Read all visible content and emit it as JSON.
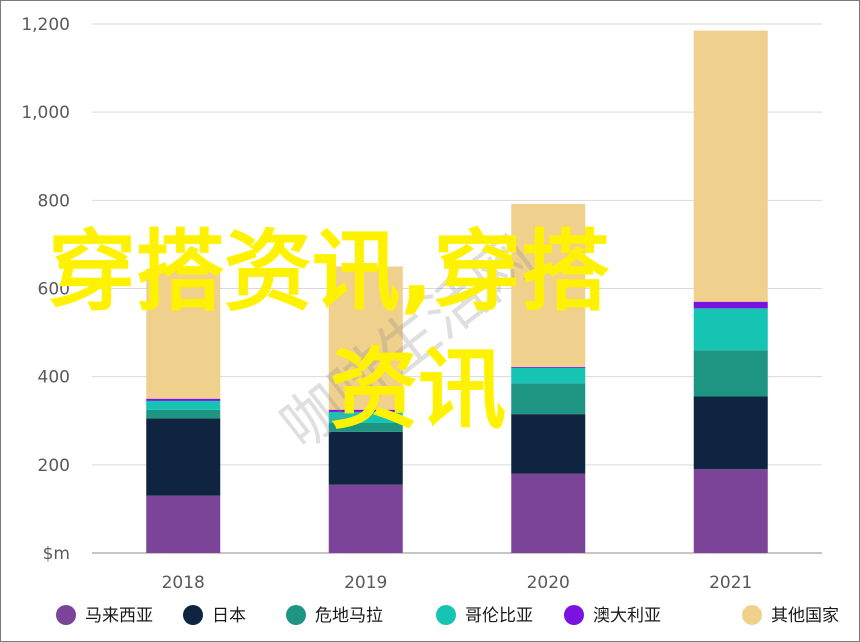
{
  "chart_data": {
    "type": "bar",
    "stacked": true,
    "categories": [
      "2018",
      "2019",
      "2020",
      "2021"
    ],
    "series": [
      {
        "name": "马来西亚",
        "color": "#7b4499",
        "values": [
          130,
          155,
          180,
          190
        ]
      },
      {
        "name": "日本",
        "color": "#0f2440",
        "values": [
          175,
          120,
          135,
          165
        ]
      },
      {
        "name": "危地马拉",
        "color": "#1e9582",
        "values": [
          20,
          20,
          70,
          105
        ]
      },
      {
        "name": "哥伦比亚",
        "color": "#15c4b2",
        "values": [
          20,
          25,
          35,
          95
        ]
      },
      {
        "name": "澳大利亚",
        "color": "#7b13e0",
        "values": [
          5,
          5,
          2,
          15
        ]
      },
      {
        "name": "其他国家",
        "color": "#efd08d",
        "values": [
          295,
          325,
          370,
          615
        ]
      }
    ],
    "ylim": [
      0,
      1200
    ],
    "yticks": [
      "$m",
      "200",
      "400",
      "600",
      "800",
      "1,000",
      "1,200"
    ],
    "grid": true,
    "legend_position": "bottom",
    "title": "",
    "xlabel": "",
    "ylabel": ""
  },
  "overlay": {
    "line1": "穿搭资讯,穿搭",
    "line2": "资讯",
    "color": "#fff200"
  },
  "watermark": "咖啡生活网"
}
